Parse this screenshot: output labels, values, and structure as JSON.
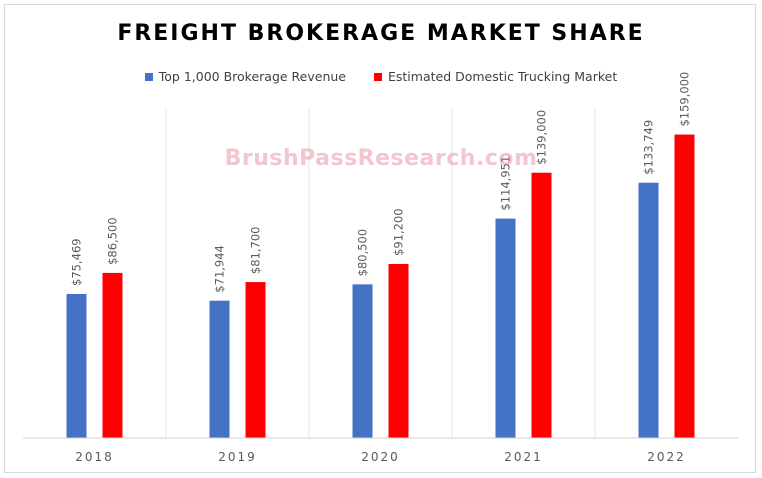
{
  "watermark": "BrushPassResearch.com",
  "chart_data": {
    "type": "bar",
    "title": "FREIGHT BROKERAGE MARKET SHARE",
    "categories": [
      "2018",
      "2019",
      "2020",
      "2021",
      "2022"
    ],
    "series": [
      {
        "name": "Top 1,000 Brokerage Revenue",
        "color": "#4472C4",
        "values": [
          75469,
          71944,
          80500,
          114951,
          133749
        ],
        "labels": [
          "$75,469",
          "$71,944",
          "$80,500",
          "$114,951",
          "$133,749"
        ]
      },
      {
        "name": "Estimated Domestic Trucking Market",
        "color": "#FF0000",
        "values": [
          86500,
          81700,
          91200,
          139000,
          159000
        ],
        "labels": [
          "$86,500",
          "$81,700",
          "$91,200",
          "$139,000",
          "$159,000"
        ]
      }
    ],
    "ylim": [
      0,
      175000
    ],
    "xlabel": "",
    "ylabel": "",
    "grid": "vertical category separators",
    "legend_position": "top"
  }
}
